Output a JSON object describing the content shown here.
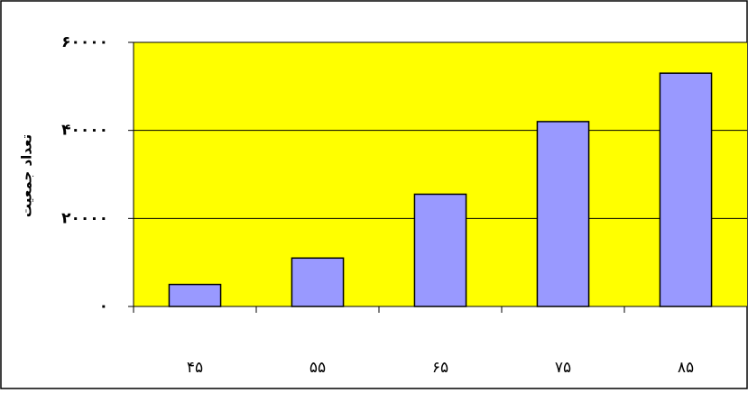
{
  "chart_data": {
    "type": "bar",
    "y_label": "تعداد جمعیت",
    "categories": [
      "۴۵",
      "۵۵",
      "۶۵",
      "۷۵",
      "۸۵"
    ],
    "values": [
      5000,
      11000,
      25500,
      42000,
      53000
    ],
    "color": "#9999ff",
    "plot_background": "#ffff00",
    "ylim": [
      0,
      60000
    ],
    "yticks": [
      {
        "value": 0,
        "label": "۰"
      },
      {
        "value": 20000,
        "label": "۲۰۰۰۰"
      },
      {
        "value": 40000,
        "label": "۴۰۰۰۰"
      },
      {
        "value": 60000,
        "label": "۶۰۰۰۰"
      }
    ],
    "grid": true
  }
}
